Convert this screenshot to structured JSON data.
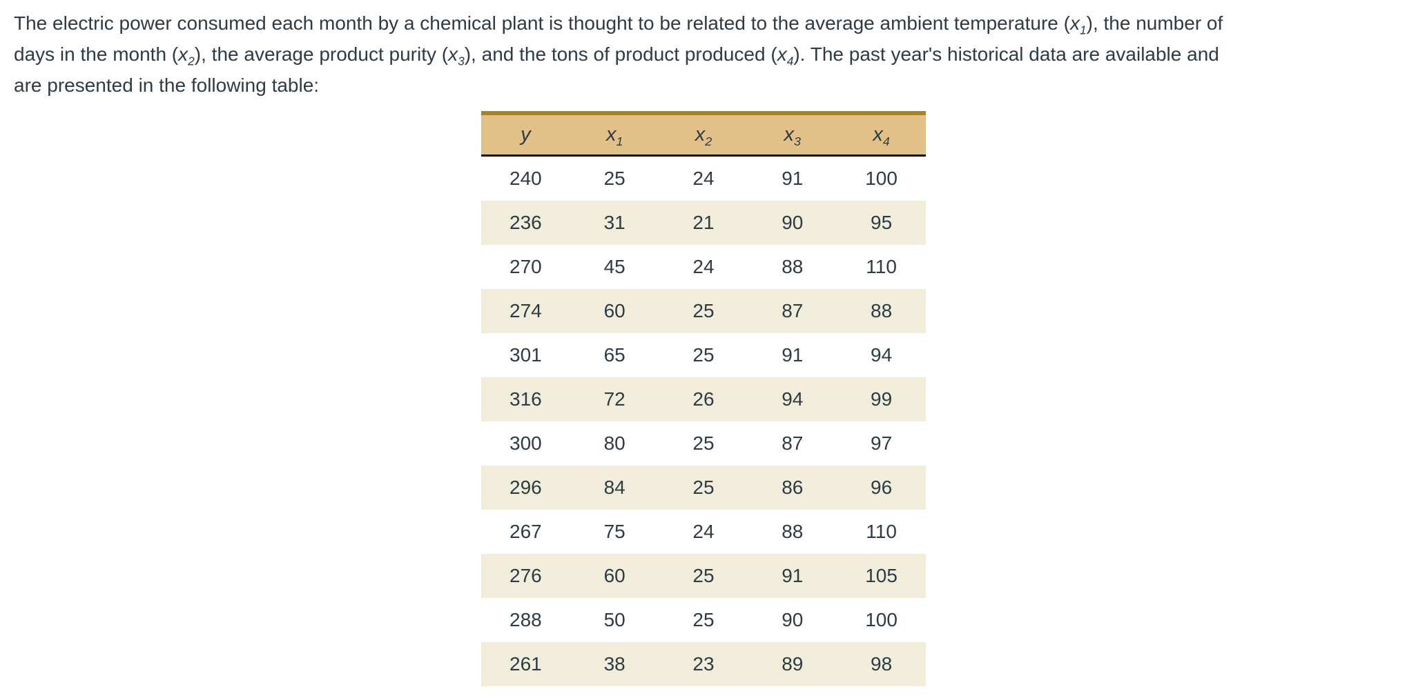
{
  "page": {
    "background": "#ffffff",
    "text_color": "#2d3b45"
  },
  "problem": {
    "lines": [
      "The electric power consumed each month by a chemical plant is thought to be related to the average ambient temperature (x_1), the number of",
      "days in the month (x_2), the average product purity (x_3), and the tons of product produced (x_4). The past year's historical data are available and",
      "are presented in the following table:"
    ]
  },
  "table": {
    "columns": [
      "y",
      "x_1",
      "x_2",
      "x_3",
      "x_4"
    ],
    "rows": [
      [
        240,
        25,
        24,
        91,
        100
      ],
      [
        236,
        31,
        21,
        90,
        95
      ],
      [
        270,
        45,
        24,
        88,
        110
      ],
      [
        274,
        60,
        25,
        87,
        88
      ],
      [
        301,
        65,
        25,
        91,
        94
      ],
      [
        316,
        72,
        26,
        94,
        99
      ],
      [
        300,
        80,
        25,
        87,
        97
      ],
      [
        296,
        84,
        25,
        86,
        96
      ],
      [
        267,
        75,
        24,
        88,
        110
      ],
      [
        276,
        60,
        25,
        91,
        105
      ],
      [
        288,
        50,
        25,
        90,
        100
      ],
      [
        261,
        38,
        23,
        89,
        98
      ]
    ],
    "colors": {
      "header_bg": "#e2c189",
      "header_top_border": "#ab8126",
      "header_bottom_border": "#101010",
      "row_even_bg": "#f2edda",
      "row_odd_bg": "#ffffff"
    }
  }
}
